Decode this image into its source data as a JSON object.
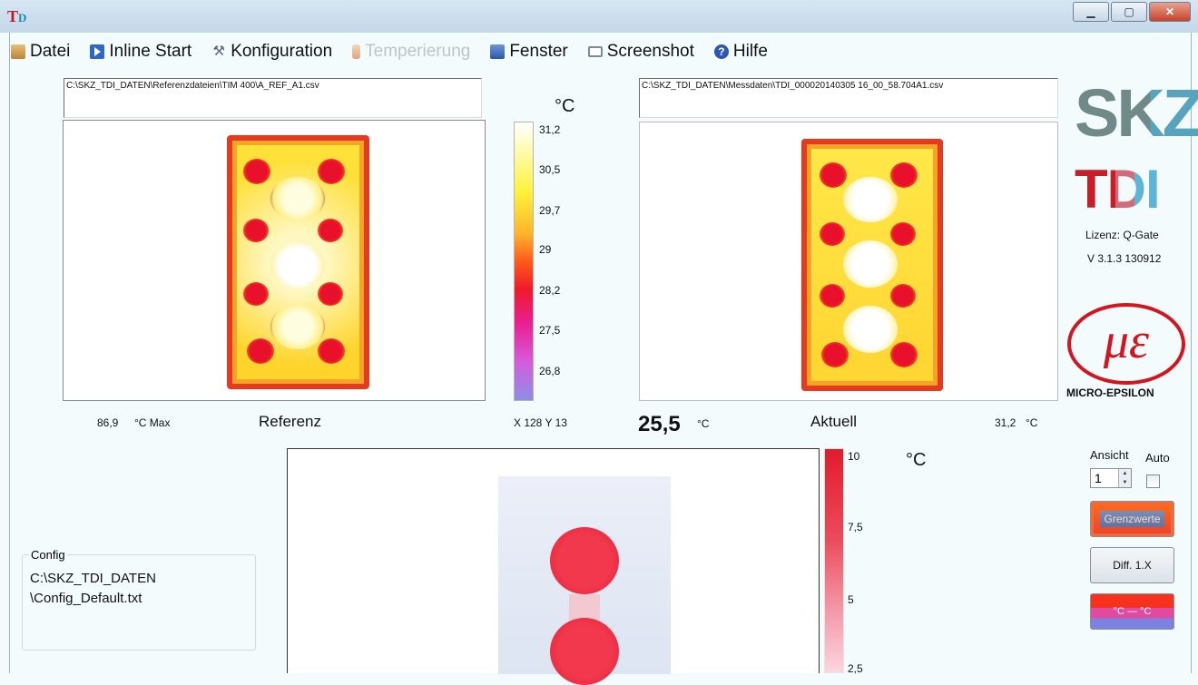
{
  "window": {
    "app_icon": "TDI-icon",
    "controls": [
      "minimize",
      "maximize",
      "close"
    ]
  },
  "menu": [
    {
      "label": "Datei",
      "icon": "folder-icon"
    },
    {
      "label": "Inline Start",
      "icon": "play-icon"
    },
    {
      "label": "Konfiguration",
      "icon": "tools-icon"
    },
    {
      "label": "Temperierung",
      "icon": "thermometer-icon",
      "disabled": true
    },
    {
      "label": "Fenster",
      "icon": "window-icon"
    },
    {
      "label": "Screenshot",
      "icon": "screenshot-icon"
    },
    {
      "label": "Hilfe",
      "icon": "help-icon"
    }
  ],
  "reference": {
    "path": "C:\\SKZ_TDI_DATEN\\Referenzdateien\\TIM 400\\A_REF_A1.csv",
    "max_value": "86,9",
    "max_label": "°C Max",
    "caption": "Referenz",
    "cursor": "X 128 Y 13"
  },
  "actual": {
    "path": "C:\\SKZ_TDI_DATEN\\Messdaten\\TDI_000020140305 16_00_58.704A1.csv",
    "caption": "Aktuell",
    "value": "31,2",
    "unit": "°C"
  },
  "center_value": {
    "value": "25,5",
    "unit": "°C"
  },
  "temp_scale": {
    "unit": "°C",
    "ticks": [
      "31,2",
      "30,5",
      "29,7",
      "29",
      "28,2",
      "27,5",
      "26,8"
    ]
  },
  "diff_scale": {
    "unit": "°C",
    "ticks": [
      "10",
      "7,5",
      "5",
      "2,5"
    ]
  },
  "config": {
    "legend": "Config",
    "line1": "C:\\SKZ_TDI_DATEN",
    "line2": "\\Config_Default.txt"
  },
  "branding": {
    "logo1": "SKZ",
    "logo2": "TDI",
    "licence": "Lizenz: Q-Gate",
    "version": "V 3.1.3 130912",
    "me_symbol": "μɛ",
    "maker": "MICRO-EPSILON"
  },
  "controls": {
    "view_label": "Ansicht",
    "auto_label": "Auto",
    "view_value": "1",
    "auto_checked": false,
    "grenz_label": "Grenzwerte",
    "diff_label": "Diff. 1.X",
    "convert_label": "°C — °C"
  },
  "colors": {
    "brand_red": "#d4141e",
    "skz_gray": "#6f8a88",
    "tdi_blue": "#5fb5d5",
    "hot": "#e8102a",
    "warm": "#ffe23a"
  }
}
